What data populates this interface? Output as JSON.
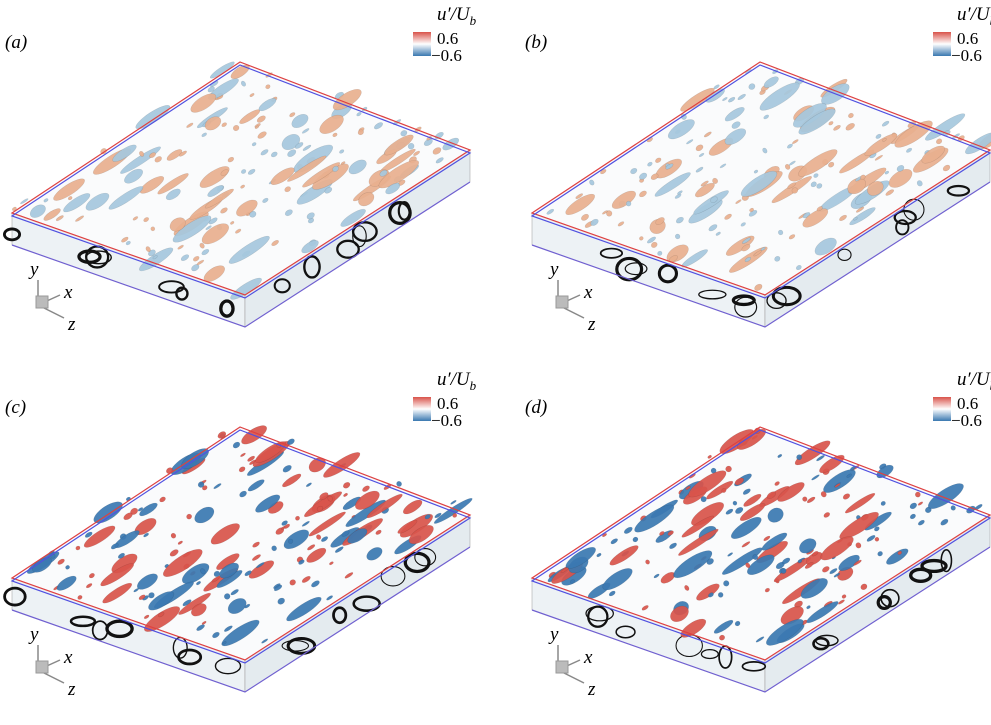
{
  "panels": [
    {
      "label": "(a)",
      "legend": {
        "title": "u′/U",
        "subscript": "b",
        "max": "0.6",
        "min": "−0.6"
      },
      "axes": {
        "y": "y",
        "x": "x",
        "z": "z"
      }
    },
    {
      "label": "(b)",
      "legend": {
        "title": "u′/U",
        "subscript": "b",
        "max": "0.6",
        "min": "−0.6"
      },
      "axes": {
        "y": "y",
        "x": "x",
        "z": "z"
      }
    },
    {
      "label": "(c)",
      "legend": {
        "title": "u′/U",
        "subscript": "b",
        "max": "0.6",
        "min": "−0.6"
      },
      "axes": {
        "y": "y",
        "x": "x",
        "z": "z"
      }
    },
    {
      "label": "(d)",
      "legend": {
        "title": "u′/U",
        "subscript": "b",
        "max": "0.6",
        "min": "−0.6"
      },
      "axes": {
        "y": "y",
        "x": "x",
        "z": "z"
      }
    }
  ]
}
